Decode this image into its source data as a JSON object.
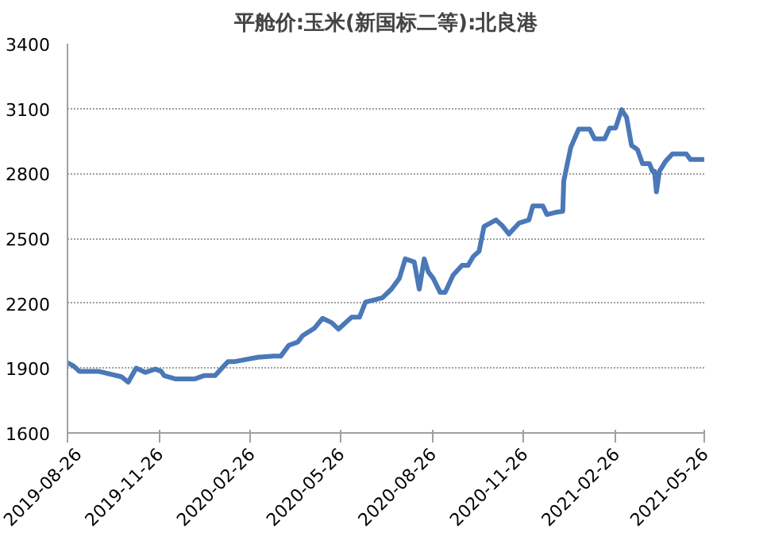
{
  "chart_data": {
    "type": "line",
    "title": "平舱价:玉米(新国标二等):北良港",
    "x": [
      "2019-08-26",
      "2019-09-01",
      "2019-09-07",
      "2019-09-26",
      "2019-10-19",
      "2019-10-26",
      "2019-11-03",
      "2019-11-12",
      "2019-11-22",
      "2019-11-28",
      "2019-12-01",
      "2019-12-12",
      "2020-01-01",
      "2020-01-10",
      "2020-01-21",
      "2020-02-03",
      "2020-02-10",
      "2020-03-04",
      "2020-03-20",
      "2020-03-27",
      "2020-04-04",
      "2020-04-13",
      "2020-04-18",
      "2020-04-30",
      "2020-05-08",
      "2020-05-17",
      "2020-05-24",
      "2020-06-06",
      "2020-06-14",
      "2020-06-20",
      "2020-07-07",
      "2020-07-16",
      "2020-07-24",
      "2020-07-30",
      "2020-08-08",
      "2020-08-13",
      "2020-08-18",
      "2020-08-22",
      "2020-08-27",
      "2020-09-03",
      "2020-09-08",
      "2020-09-16",
      "2020-09-25",
      "2020-10-01",
      "2020-10-06",
      "2020-10-12",
      "2020-10-17",
      "2020-10-29",
      "2020-11-04",
      "2020-11-11",
      "2020-11-21",
      "2020-12-01",
      "2020-12-05",
      "2020-12-15",
      "2020-12-19",
      "2020-12-28",
      "2021-01-04",
      "2021-01-05",
      "2021-01-12",
      "2021-01-20",
      "2021-01-31",
      "2021-02-05",
      "2021-02-15",
      "2021-02-20",
      "2021-02-26",
      "2021-03-04",
      "2021-03-09",
      "2021-03-14",
      "2021-03-20",
      "2021-03-25",
      "2021-04-01",
      "2021-04-04",
      "2021-04-06",
      "2021-04-08",
      "2021-04-11",
      "2021-04-17",
      "2021-04-24",
      "2021-05-08",
      "2021-05-12",
      "2021-05-26"
    ],
    "series": [
      {
        "color": "#4a78b8",
        "values": [
          1925,
          1910,
          1885,
          1885,
          1860,
          1835,
          1900,
          1880,
          1895,
          1885,
          1865,
          1850,
          1850,
          1865,
          1865,
          1930,
          1930,
          1950,
          1955,
          1955,
          2005,
          2020,
          2050,
          2085,
          2130,
          2110,
          2080,
          2135,
          2135,
          2205,
          2225,
          2265,
          2315,
          2405,
          2390,
          2265,
          2405,
          2345,
          2315,
          2250,
          2250,
          2330,
          2375,
          2375,
          2415,
          2440,
          2555,
          2585,
          2560,
          2520,
          2570,
          2585,
          2650,
          2650,
          2610,
          2620,
          2625,
          2765,
          2920,
          3005,
          3005,
          2960,
          2960,
          3010,
          3010,
          3095,
          3060,
          2930,
          2910,
          2845,
          2845,
          2810,
          2810,
          2715,
          2810,
          2855,
          2890,
          2890,
          2865,
          2865
        ]
      }
    ],
    "xlim": [
      "2019-08-26",
      "2021-05-26"
    ],
    "xticks": [
      "2019-08-26",
      "2019-11-26",
      "2020-02-26",
      "2020-05-26",
      "2020-08-26",
      "2020-11-26",
      "2021-02-26",
      "2021-05-26"
    ],
    "ylim": [
      1600,
      3400
    ],
    "yticks": [
      1600,
      1900,
      2200,
      2500,
      2800,
      3100,
      3400
    ],
    "grid": "y",
    "line_style": "solid",
    "marker": "none"
  }
}
